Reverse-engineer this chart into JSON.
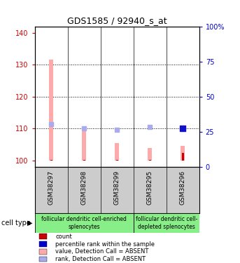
{
  "title": "GDS1585 / 92940_s_at",
  "samples": [
    "GSM38297",
    "GSM38298",
    "GSM38299",
    "GSM38295",
    "GSM38296"
  ],
  "ylim_left": [
    98,
    142
  ],
  "ylim_right": [
    0,
    100
  ],
  "yticks_left": [
    100,
    110,
    120,
    130,
    140
  ],
  "yticks_right": [
    0,
    25,
    50,
    75,
    100
  ],
  "ytick_labels_right": [
    "0",
    "25",
    "50",
    "75",
    "100%"
  ],
  "pink_bar_heights": [
    31.5,
    10.0,
    5.5,
    4.0,
    4.5
  ],
  "red_bar_heights": [
    0.3,
    0.3,
    0.3,
    0.3,
    2.5
  ],
  "blue_dot_y": [
    111.5,
    110.0,
    109.7,
    110.5,
    110.0
  ],
  "blue_dot_colors": [
    "#aaaaee",
    "#aaaaee",
    "#aaaaee",
    "#aaaaee",
    "#1111cc"
  ],
  "blue_dot_sizes": [
    25,
    25,
    25,
    25,
    40
  ],
  "grid_yticks": [
    110,
    120,
    130
  ],
  "legend_items": [
    {
      "color": "#cc0000",
      "label": "count"
    },
    {
      "color": "#0000cc",
      "label": "percentile rank within the sample"
    },
    {
      "color": "#ffaaaa",
      "label": "value, Detection Call = ABSENT"
    },
    {
      "color": "#aaaaee",
      "label": "rank, Detection Call = ABSENT"
    }
  ],
  "bar_bg_color": "#cccccc",
  "plot_bg_color": "#ffffff",
  "left_axis_color": "#cc0000",
  "right_axis_color": "#0000cc",
  "cell_group1_label": "follicular dendritic cell-enriched\nsplenocytes",
  "cell_group2_label": "follicular dendritic cell-\ndepleted splenocytes",
  "cell_group_color": "#88ee88"
}
